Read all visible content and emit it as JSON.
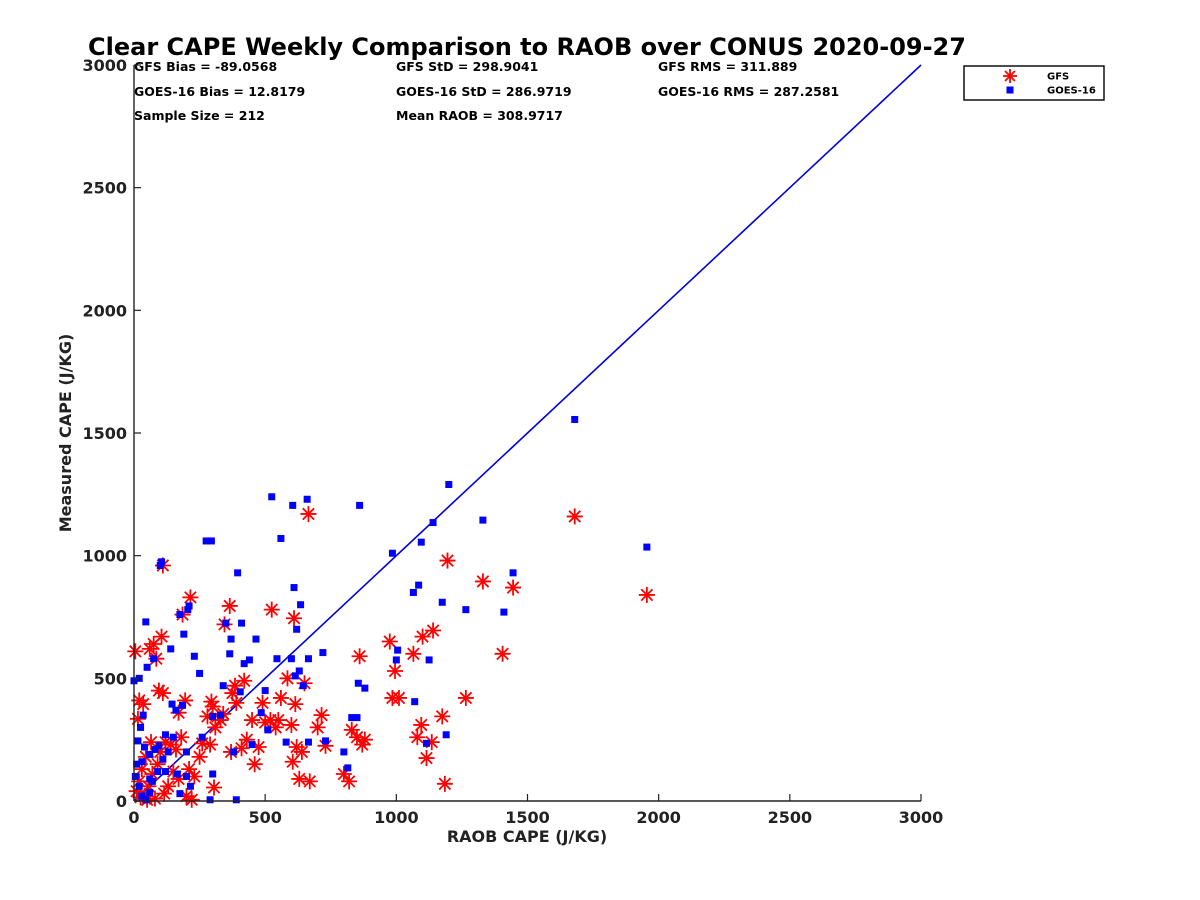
{
  "chart_data": {
    "type": "scatter",
    "title": "Clear CAPE Weekly Comparison to RAOB over CONUS 2020-09-27",
    "xlabel": "RAOB CAPE (J/KG)",
    "ylabel": "Measured CAPE (J/KG)",
    "xlim": [
      0,
      3000
    ],
    "ylim": [
      0,
      3000
    ],
    "xticks": [
      "0",
      "500",
      "1000",
      "1500",
      "2000",
      "2500",
      "3000"
    ],
    "yticks": [
      "0",
      "500",
      "1000",
      "1500",
      "2000",
      "2500",
      "3000"
    ],
    "grid": false,
    "legend_position": "top-right",
    "stats": [
      [
        "GFS Bias = -89.0568",
        "GFS StD = 298.9041",
        "GFS RMS = 311.889"
      ],
      [
        "GOES-16 Bias = 12.8179",
        "GOES-16 StD = 286.9719",
        "GOES-16 RMS = 287.2581"
      ],
      [
        "Sample Size = 212",
        "Mean RAOB = 308.9717"
      ]
    ],
    "reference_line": {
      "from": [
        0,
        0
      ],
      "to": [
        3000,
        3000
      ],
      "color": "#0000dd"
    },
    "series": [
      {
        "name": "GFS",
        "marker": "asterisk",
        "color": "#ff0000",
        "points": [
          [
            5,
            610
          ],
          [
            20,
            410
          ],
          [
            35,
            395
          ],
          [
            15,
            335
          ],
          [
            60,
            620
          ],
          [
            75,
            640
          ],
          [
            105,
            670
          ],
          [
            95,
            450
          ],
          [
            110,
            440
          ],
          [
            85,
            580
          ],
          [
            65,
            240
          ],
          [
            45,
            180
          ],
          [
            30,
            130
          ],
          [
            20,
            80
          ],
          [
            10,
            40
          ],
          [
            40,
            20
          ],
          [
            55,
            60
          ],
          [
            70,
            110
          ],
          [
            90,
            150
          ],
          [
            100,
            200
          ],
          [
            120,
            240
          ],
          [
            140,
            230
          ],
          [
            160,
            210
          ],
          [
            150,
            120
          ],
          [
            170,
            90
          ],
          [
            130,
            60
          ],
          [
            115,
            30
          ],
          [
            80,
            10
          ],
          [
            50,
            5
          ],
          [
            25,
            15
          ],
          [
            185,
            760
          ],
          [
            215,
            830
          ],
          [
            110,
            960
          ],
          [
            170,
            360
          ],
          [
            195,
            410
          ],
          [
            180,
            260
          ],
          [
            210,
            130
          ],
          [
            230,
            100
          ],
          [
            200,
            20
          ],
          [
            220,
            5
          ],
          [
            260,
            235
          ],
          [
            280,
            345
          ],
          [
            295,
            405
          ],
          [
            300,
            385
          ],
          [
            310,
            300
          ],
          [
            290,
            230
          ],
          [
            305,
            55
          ],
          [
            345,
            720
          ],
          [
            365,
            795
          ],
          [
            340,
            355
          ],
          [
            375,
            440
          ],
          [
            385,
            470
          ],
          [
            390,
            400
          ],
          [
            410,
            215
          ],
          [
            420,
            490
          ],
          [
            430,
            250
          ],
          [
            450,
            330
          ],
          [
            460,
            150
          ],
          [
            475,
            220
          ],
          [
            490,
            400
          ],
          [
            500,
            320
          ],
          [
            520,
            330
          ],
          [
            540,
            300
          ],
          [
            550,
            330
          ],
          [
            560,
            420
          ],
          [
            585,
            500
          ],
          [
            525,
            780
          ],
          [
            610,
            745
          ],
          [
            600,
            310
          ],
          [
            615,
            395
          ],
          [
            605,
            160
          ],
          [
            620,
            220
          ],
          [
            630,
            90
          ],
          [
            640,
            200
          ],
          [
            650,
            480
          ],
          [
            665,
            1170
          ],
          [
            670,
            80
          ],
          [
            700,
            300
          ],
          [
            715,
            350
          ],
          [
            730,
            225
          ],
          [
            800,
            110
          ],
          [
            820,
            80
          ],
          [
            830,
            290
          ],
          [
            850,
            260
          ],
          [
            860,
            590
          ],
          [
            870,
            230
          ],
          [
            880,
            250
          ],
          [
            975,
            650
          ],
          [
            995,
            530
          ],
          [
            985,
            420
          ],
          [
            1010,
            420
          ],
          [
            1065,
            600
          ],
          [
            1080,
            260
          ],
          [
            1100,
            670
          ],
          [
            1095,
            310
          ],
          [
            1115,
            175
          ],
          [
            1135,
            240
          ],
          [
            1140,
            695
          ],
          [
            1175,
            345
          ],
          [
            1185,
            70
          ],
          [
            1195,
            980
          ],
          [
            1265,
            420
          ],
          [
            1330,
            895
          ],
          [
            1405,
            600
          ],
          [
            1445,
            870
          ],
          [
            1680,
            1160
          ],
          [
            1955,
            840
          ],
          [
            370,
            200
          ],
          [
            250,
            180
          ],
          [
            330,
            330
          ]
        ]
      },
      {
        "name": "GOES-16",
        "marker": "square",
        "color": "#0000ff",
        "points": [
          [
            0,
            490
          ],
          [
            20,
            500
          ],
          [
            50,
            545
          ],
          [
            75,
            580
          ],
          [
            45,
            730
          ],
          [
            100,
            960
          ],
          [
            105,
            975
          ],
          [
            175,
            760
          ],
          [
            190,
            680
          ],
          [
            205,
            780
          ],
          [
            140,
            620
          ],
          [
            210,
            795
          ],
          [
            230,
            590
          ],
          [
            160,
            370
          ],
          [
            185,
            390
          ],
          [
            145,
            395
          ],
          [
            120,
            270
          ],
          [
            95,
            225
          ],
          [
            80,
            210
          ],
          [
            60,
            190
          ],
          [
            40,
            220
          ],
          [
            15,
            245
          ],
          [
            25,
            300
          ],
          [
            35,
            350
          ],
          [
            10,
            150
          ],
          [
            5,
            100
          ],
          [
            20,
            60
          ],
          [
            30,
            20
          ],
          [
            45,
            5
          ],
          [
            60,
            35
          ],
          [
            70,
            80
          ],
          [
            90,
            120
          ],
          [
            110,
            170
          ],
          [
            130,
            200
          ],
          [
            150,
            260
          ],
          [
            165,
            110
          ],
          [
            200,
            100
          ],
          [
            215,
            60
          ],
          [
            250,
            520
          ],
          [
            275,
            1060
          ],
          [
            295,
            1060
          ],
          [
            300,
            345
          ],
          [
            330,
            350
          ],
          [
            340,
            470
          ],
          [
            350,
            725
          ],
          [
            370,
            660
          ],
          [
            365,
            600
          ],
          [
            380,
            200
          ],
          [
            395,
            930
          ],
          [
            405,
            445
          ],
          [
            410,
            725
          ],
          [
            420,
            560
          ],
          [
            440,
            575
          ],
          [
            450,
            230
          ],
          [
            465,
            660
          ],
          [
            485,
            360
          ],
          [
            500,
            450
          ],
          [
            510,
            290
          ],
          [
            525,
            1240
          ],
          [
            545,
            580
          ],
          [
            560,
            1070
          ],
          [
            580,
            240
          ],
          [
            600,
            580
          ],
          [
            605,
            1205
          ],
          [
            610,
            870
          ],
          [
            615,
            510
          ],
          [
            620,
            700
          ],
          [
            630,
            530
          ],
          [
            635,
            800
          ],
          [
            645,
            470
          ],
          [
            660,
            1230
          ],
          [
            665,
            580
          ],
          [
            665,
            240
          ],
          [
            720,
            605
          ],
          [
            730,
            245
          ],
          [
            800,
            200
          ],
          [
            815,
            135
          ],
          [
            830,
            340
          ],
          [
            850,
            340
          ],
          [
            855,
            480
          ],
          [
            860,
            1205
          ],
          [
            880,
            460
          ],
          [
            985,
            1010
          ],
          [
            1000,
            575
          ],
          [
            1005,
            615
          ],
          [
            1065,
            850
          ],
          [
            1070,
            405
          ],
          [
            1085,
            880
          ],
          [
            1095,
            1055
          ],
          [
            1115,
            235
          ],
          [
            1125,
            575
          ],
          [
            1140,
            1135
          ],
          [
            1175,
            810
          ],
          [
            1190,
            270
          ],
          [
            1200,
            1290
          ],
          [
            1265,
            780
          ],
          [
            1330,
            1145
          ],
          [
            1410,
            770
          ],
          [
            1445,
            930
          ],
          [
            1680,
            1555
          ],
          [
            1955,
            1035
          ],
          [
            120,
            120
          ],
          [
            200,
            200
          ],
          [
            260,
            260
          ],
          [
            300,
            110
          ],
          [
            175,
            30
          ],
          [
            390,
            5
          ],
          [
            290,
            5
          ],
          [
            30,
            160
          ],
          [
            60,
            90
          ]
        ]
      }
    ]
  }
}
